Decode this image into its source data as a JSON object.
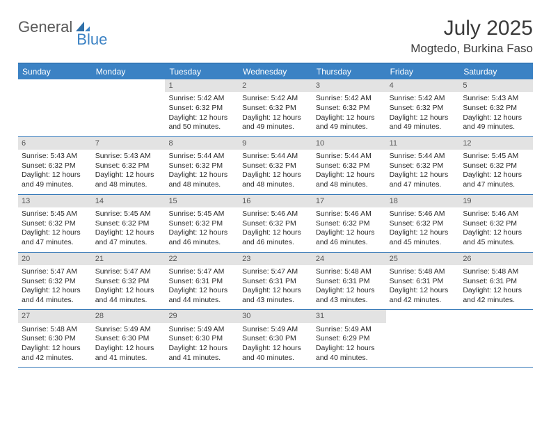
{
  "brand": {
    "part1": "General",
    "part2": "Blue"
  },
  "title": {
    "month": "July 2025",
    "location": "Mogtedo, Burkina Faso"
  },
  "colors": {
    "header_bg": "#3b82c4",
    "border": "#3478b8",
    "daynum_bg": "#e3e3e3",
    "text": "#2a2a2a",
    "brand_gray": "#5a5a5a",
    "brand_blue": "#3b82c4"
  },
  "weekdays": [
    "Sunday",
    "Monday",
    "Tuesday",
    "Wednesday",
    "Thursday",
    "Friday",
    "Saturday"
  ],
  "weeks": [
    [
      null,
      null,
      {
        "n": "1",
        "sr": "5:42 AM",
        "ss": "6:32 PM",
        "dl": "12 hours and 50 minutes."
      },
      {
        "n": "2",
        "sr": "5:42 AM",
        "ss": "6:32 PM",
        "dl": "12 hours and 49 minutes."
      },
      {
        "n": "3",
        "sr": "5:42 AM",
        "ss": "6:32 PM",
        "dl": "12 hours and 49 minutes."
      },
      {
        "n": "4",
        "sr": "5:42 AM",
        "ss": "6:32 PM",
        "dl": "12 hours and 49 minutes."
      },
      {
        "n": "5",
        "sr": "5:43 AM",
        "ss": "6:32 PM",
        "dl": "12 hours and 49 minutes."
      }
    ],
    [
      {
        "n": "6",
        "sr": "5:43 AM",
        "ss": "6:32 PM",
        "dl": "12 hours and 49 minutes."
      },
      {
        "n": "7",
        "sr": "5:43 AM",
        "ss": "6:32 PM",
        "dl": "12 hours and 48 minutes."
      },
      {
        "n": "8",
        "sr": "5:44 AM",
        "ss": "6:32 PM",
        "dl": "12 hours and 48 minutes."
      },
      {
        "n": "9",
        "sr": "5:44 AM",
        "ss": "6:32 PM",
        "dl": "12 hours and 48 minutes."
      },
      {
        "n": "10",
        "sr": "5:44 AM",
        "ss": "6:32 PM",
        "dl": "12 hours and 48 minutes."
      },
      {
        "n": "11",
        "sr": "5:44 AM",
        "ss": "6:32 PM",
        "dl": "12 hours and 47 minutes."
      },
      {
        "n": "12",
        "sr": "5:45 AM",
        "ss": "6:32 PM",
        "dl": "12 hours and 47 minutes."
      }
    ],
    [
      {
        "n": "13",
        "sr": "5:45 AM",
        "ss": "6:32 PM",
        "dl": "12 hours and 47 minutes."
      },
      {
        "n": "14",
        "sr": "5:45 AM",
        "ss": "6:32 PM",
        "dl": "12 hours and 47 minutes."
      },
      {
        "n": "15",
        "sr": "5:45 AM",
        "ss": "6:32 PM",
        "dl": "12 hours and 46 minutes."
      },
      {
        "n": "16",
        "sr": "5:46 AM",
        "ss": "6:32 PM",
        "dl": "12 hours and 46 minutes."
      },
      {
        "n": "17",
        "sr": "5:46 AM",
        "ss": "6:32 PM",
        "dl": "12 hours and 46 minutes."
      },
      {
        "n": "18",
        "sr": "5:46 AM",
        "ss": "6:32 PM",
        "dl": "12 hours and 45 minutes."
      },
      {
        "n": "19",
        "sr": "5:46 AM",
        "ss": "6:32 PM",
        "dl": "12 hours and 45 minutes."
      }
    ],
    [
      {
        "n": "20",
        "sr": "5:47 AM",
        "ss": "6:32 PM",
        "dl": "12 hours and 44 minutes."
      },
      {
        "n": "21",
        "sr": "5:47 AM",
        "ss": "6:32 PM",
        "dl": "12 hours and 44 minutes."
      },
      {
        "n": "22",
        "sr": "5:47 AM",
        "ss": "6:31 PM",
        "dl": "12 hours and 44 minutes."
      },
      {
        "n": "23",
        "sr": "5:47 AM",
        "ss": "6:31 PM",
        "dl": "12 hours and 43 minutes."
      },
      {
        "n": "24",
        "sr": "5:48 AM",
        "ss": "6:31 PM",
        "dl": "12 hours and 43 minutes."
      },
      {
        "n": "25",
        "sr": "5:48 AM",
        "ss": "6:31 PM",
        "dl": "12 hours and 42 minutes."
      },
      {
        "n": "26",
        "sr": "5:48 AM",
        "ss": "6:31 PM",
        "dl": "12 hours and 42 minutes."
      }
    ],
    [
      {
        "n": "27",
        "sr": "5:48 AM",
        "ss": "6:30 PM",
        "dl": "12 hours and 42 minutes."
      },
      {
        "n": "28",
        "sr": "5:49 AM",
        "ss": "6:30 PM",
        "dl": "12 hours and 41 minutes."
      },
      {
        "n": "29",
        "sr": "5:49 AM",
        "ss": "6:30 PM",
        "dl": "12 hours and 41 minutes."
      },
      {
        "n": "30",
        "sr": "5:49 AM",
        "ss": "6:30 PM",
        "dl": "12 hours and 40 minutes."
      },
      {
        "n": "31",
        "sr": "5:49 AM",
        "ss": "6:29 PM",
        "dl": "12 hours and 40 minutes."
      },
      null,
      null
    ]
  ],
  "labels": {
    "sunrise": "Sunrise:",
    "sunset": "Sunset:",
    "daylight": "Daylight:"
  }
}
